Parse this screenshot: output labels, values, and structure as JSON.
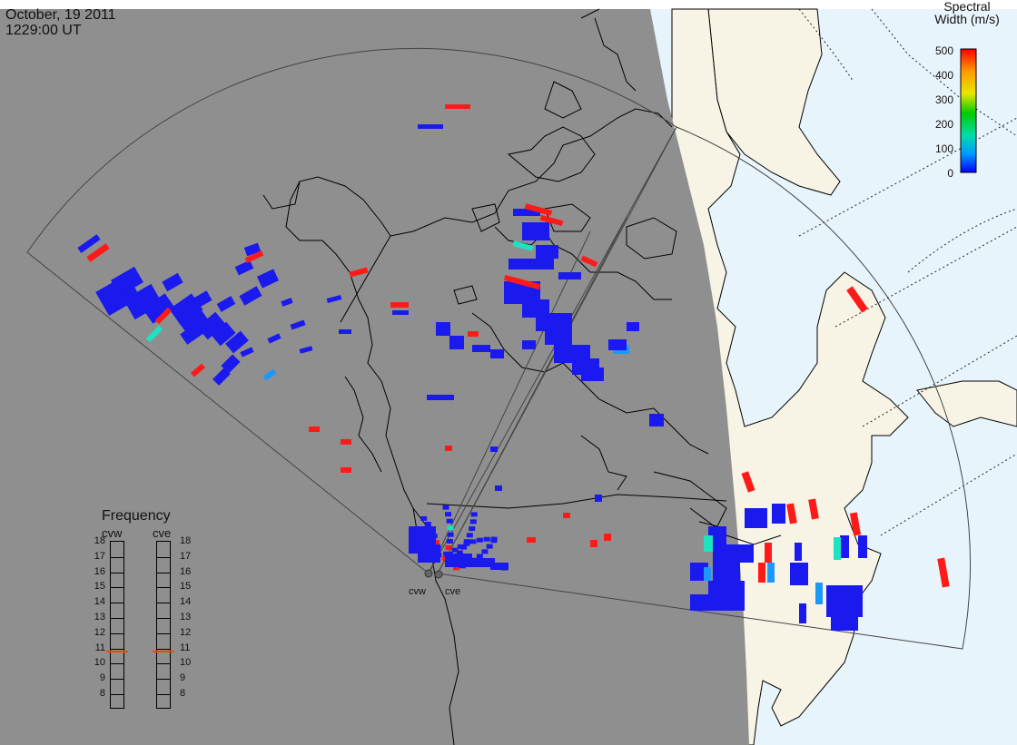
{
  "header": {
    "date": "October, 19 2011",
    "time": "1229:00 UT"
  },
  "colorbar": {
    "title_line1": "Spectral",
    "title_line2": "Width (m/s)",
    "ticks": [
      "500",
      "400",
      "300",
      "200",
      "100",
      "0"
    ],
    "colors": [
      "#ff0000",
      "#ff9900",
      "#e8e800",
      "#00cc00",
      "#00ddaa",
      "#0099ff",
      "#0000ff"
    ]
  },
  "frequency_panel": {
    "title": "Frequency",
    "columns": [
      "cvw",
      "cve"
    ],
    "levels": [
      "18",
      "17",
      "16",
      "15",
      "14",
      "13",
      "12",
      "11",
      "10",
      "9",
      "8"
    ],
    "selected_mhz": {
      "cvw": 10.8,
      "cve": 10.8
    },
    "indicator_color": "#ff4400"
  },
  "radar_sites": [
    {
      "id": "cvw",
      "label": "cvw"
    },
    {
      "id": "cve",
      "label": "cve"
    }
  ],
  "map_colors": {
    "night": "#8f8f8f",
    "ocean_day": "#e8f4fb",
    "land_day": "#f7f4e6",
    "coast": "#000000",
    "echo_blue": "#1a1aee",
    "echo_red": "#ff1a1a",
    "echo_cyan": "#1de3c0",
    "echo_sky": "#1a99ff"
  }
}
